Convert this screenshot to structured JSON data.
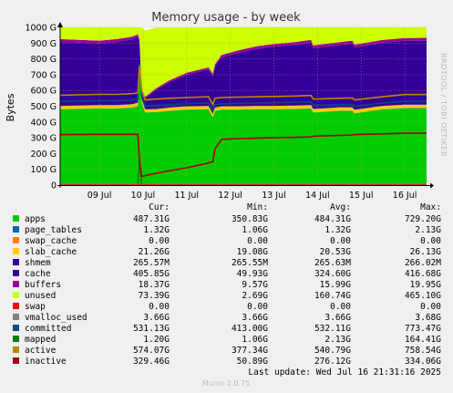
{
  "chart_data": {
    "type": "area",
    "title": "Memory usage - by week",
    "ylabel": "Bytes",
    "watermark": "RRDTOOL / TOBI OETIKER",
    "footer": "Munin 2.0.75",
    "last_update": "Last update: Wed Jul 16 21:31:16 2025",
    "x_ticks": [
      "09 Jul",
      "10 Jul",
      "11 Jul",
      "12 Jul",
      "13 Jul",
      "14 Jul",
      "15 Jul",
      "16 Jul"
    ],
    "y_ticks": [
      "0",
      "100 G",
      "200 G",
      "300 G",
      "400 G",
      "500 G",
      "600 G",
      "700 G",
      "800 G",
      "900 G",
      "1000 G"
    ],
    "ylim": [
      0,
      1000
    ],
    "x_range_days": [
      8.1,
      16.5
    ],
    "x_tick_days": [
      9,
      10,
      11,
      12,
      13,
      14,
      15,
      16
    ],
    "grid": true,
    "columns": [
      "Cur:",
      "Min:",
      "Avg:",
      "Max:"
    ],
    "legend": [
      {
        "name": "apps",
        "color": "#00cc00",
        "cur": "487.31G",
        "min": "350.83G",
        "avg": "484.31G",
        "max": "729.20G"
      },
      {
        "name": "page_tables",
        "color": "#0066b3",
        "cur": "1.32G",
        "min": "1.06G",
        "avg": "1.32G",
        "max": "2.13G"
      },
      {
        "name": "swap_cache",
        "color": "#ff8000",
        "cur": "0.00",
        "min": "0.00",
        "avg": "0.00",
        "max": "0.00"
      },
      {
        "name": "slab_cache",
        "color": "#ffcc00",
        "cur": "21.26G",
        "min": "19.08G",
        "avg": "20.53G",
        "max": "26.13G"
      },
      {
        "name": "shmem",
        "color": "#330099",
        "cur": "265.57M",
        "min": "265.55M",
        "avg": "265.63M",
        "max": "266.02M"
      },
      {
        "name": "cache",
        "color": "#330099",
        "cur": "405.85G",
        "min": "49.93G",
        "avg": "324.60G",
        "max": "416.68G"
      },
      {
        "name": "buffers",
        "color": "#990099",
        "cur": "18.37G",
        "min": "9.57G",
        "avg": "15.99G",
        "max": "19.95G"
      },
      {
        "name": "unused",
        "color": "#ccff00",
        "cur": "73.39G",
        "min": "2.69G",
        "avg": "160.74G",
        "max": "465.10G"
      },
      {
        "name": "swap",
        "color": "#ff0000",
        "cur": "0.00",
        "min": "0.00",
        "avg": "0.00",
        "max": "0.00"
      },
      {
        "name": "vmalloc_used",
        "color": "#808080",
        "cur": "3.66G",
        "min": "3.66G",
        "avg": "3.66G",
        "max": "3.68G"
      },
      {
        "name": "committed",
        "color": "#004d80",
        "cur": "531.13G",
        "min": "413.00G",
        "avg": "532.11G",
        "max": "773.47G"
      },
      {
        "name": "mapped",
        "color": "#008000",
        "cur": "1.20G",
        "min": "1.06G",
        "avg": "2.13G",
        "max": "164.41G"
      },
      {
        "name": "active",
        "color": "#b78a00",
        "cur": "574.07G",
        "min": "377.34G",
        "avg": "540.79G",
        "max": "758.54G"
      },
      {
        "name": "inactive",
        "color": "#aa0000",
        "cur": "329.46G",
        "min": "50.89G",
        "avg": "276.12G",
        "max": "334.06G"
      }
    ],
    "x": [
      8.1,
      9.0,
      9.4,
      9.75,
      9.88,
      9.92,
      9.97,
      10.05,
      10.3,
      10.6,
      11.0,
      11.5,
      11.6,
      11.65,
      11.8,
      12.2,
      12.6,
      13.0,
      13.5,
      13.85,
      13.9,
      14.5,
      14.8,
      14.85,
      15.5,
      16.0,
      16.5
    ],
    "series": [
      {
        "name": "apps",
        "values": [
          480,
          485,
          485,
          490,
          500,
          720,
          520,
          460,
          462,
          470,
          478,
          480,
          430,
          470,
          478,
          478,
          480,
          480,
          482,
          485,
          460,
          470,
          470,
          455,
          480,
          487,
          487
        ]
      },
      {
        "name": "page_tables",
        "values": [
          1.3,
          1.3,
          1.3,
          1.3,
          1.3,
          2.1,
          1.3,
          1.1,
          1.2,
          1.2,
          1.3,
          1.3,
          1.3,
          1.3,
          1.3,
          1.3,
          1.3,
          1.3,
          1.3,
          1.3,
          1.3,
          1.3,
          1.3,
          1.3,
          1.3,
          1.3,
          1.3
        ]
      },
      {
        "name": "swap_cache",
        "values": [
          0,
          0,
          0,
          0,
          0,
          0,
          0,
          0,
          0,
          0,
          0,
          0,
          0,
          0,
          0,
          0,
          0,
          0,
          0,
          0,
          0,
          0,
          0,
          0,
          0,
          0,
          0
        ]
      },
      {
        "name": "slab_cache",
        "values": [
          21,
          21,
          21,
          21,
          21,
          26,
          21,
          19,
          19,
          20,
          20,
          20,
          20,
          20,
          20,
          20,
          21,
          21,
          21,
          21,
          21,
          21,
          21,
          21,
          21,
          21,
          21
        ]
      },
      {
        "name": "shmem",
        "values": [
          0.27,
          0.27,
          0.27,
          0.27,
          0.27,
          0.27,
          0.27,
          0.27,
          0.27,
          0.27,
          0.27,
          0.27,
          0.27,
          0.27,
          0.27,
          0.27,
          0.27,
          0.27,
          0.27,
          0.27,
          0.27,
          0.27,
          0.27,
          0.27,
          0.27,
          0.27,
          0.27
        ]
      },
      {
        "name": "cache",
        "values": [
          405,
          390,
          400,
          410,
          415,
          160,
          60,
          70,
          120,
          160,
          200,
          230,
          240,
          260,
          310,
          340,
          360,
          375,
          385,
          395,
          385,
          395,
          405,
          395,
          400,
          405,
          406
        ]
      },
      {
        "name": "buffers",
        "values": [
          18,
          18,
          18,
          18,
          18,
          15,
          10,
          10,
          11,
          12,
          13,
          14,
          14,
          15,
          16,
          16,
          17,
          17,
          18,
          18,
          18,
          18,
          18,
          18,
          18,
          18,
          18
        ]
      },
      {
        "name": "unused",
        "values": [
          74,
          86,
          75,
          60,
          45,
          76,
          386,
          420,
          385,
          335,
          286,
          253,
          295,
          234,
          175,
          145,
          122,
          107,
          95,
          80,
          115,
          95,
          85,
          110,
          80,
          68,
          68
        ]
      },
      {
        "name": "swap",
        "values": [
          0,
          0,
          0,
          0,
          0,
          0,
          0,
          0,
          0,
          0,
          0,
          0,
          0,
          0,
          0,
          0,
          0,
          0,
          0,
          0,
          0,
          0,
          0,
          0,
          0,
          0,
          0
        ]
      },
      {
        "name": "vmalloc_used",
        "values": [
          3.66,
          3.66,
          3.66,
          3.66,
          3.66,
          3.66,
          3.66,
          3.66,
          3.66,
          3.66,
          3.66,
          3.66,
          3.66,
          3.66,
          3.66,
          3.66,
          3.66,
          3.66,
          3.66,
          3.66,
          3.66,
          3.66,
          3.66,
          3.66,
          3.66,
          3.66,
          3.66
        ]
      },
      {
        "name": "committed",
        "values": [
          530,
          535,
          535,
          540,
          545,
          770,
          560,
          500,
          505,
          510,
          515,
          520,
          470,
          510,
          515,
          518,
          520,
          522,
          525,
          528,
          505,
          510,
          512,
          500,
          520,
          531,
          531
        ]
      },
      {
        "name": "mapped",
        "values": [
          1.2,
          1.2,
          1.2,
          1.2,
          1.2,
          164,
          1.2,
          1.1,
          1.1,
          1.1,
          1.2,
          1.2,
          1.2,
          1.2,
          1.2,
          1.2,
          1.2,
          1.2,
          1.2,
          1.2,
          1.2,
          1.2,
          1.2,
          1.2,
          1.2,
          1.2,
          1.2
        ]
      },
      {
        "name": "active",
        "values": [
          570,
          575,
          575,
          580,
          585,
          755,
          600,
          540,
          545,
          550,
          555,
          560,
          510,
          550,
          555,
          558,
          560,
          562,
          565,
          568,
          545,
          550,
          552,
          540,
          560,
          574,
          574
        ]
      },
      {
        "name": "inactive",
        "values": [
          320,
          322,
          322,
          322,
          322,
          150,
          55,
          60,
          75,
          90,
          110,
          140,
          150,
          230,
          290,
          295,
          298,
          300,
          303,
          305,
          310,
          315,
          318,
          320,
          325,
          329,
          329
        ]
      }
    ]
  }
}
